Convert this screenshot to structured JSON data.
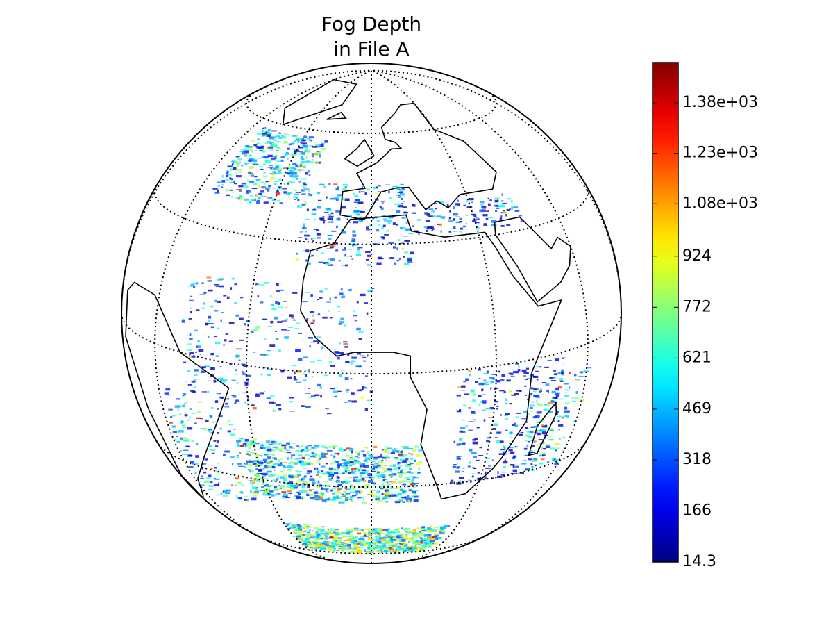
{
  "chart_data": {
    "type": "map",
    "title": [
      "Fog Depth",
      "in File A"
    ],
    "colorbar": {
      "colormap": "jet",
      "lim": [
        14.3,
        1500
      ],
      "ticks": [
        14.3,
        166,
        318,
        469,
        621,
        772,
        924,
        {
          "value": 1080,
          "label": "1.08e+03"
        },
        {
          "value": 1230,
          "label": "1.23e+03"
        },
        {
          "value": 1380,
          "label": "1.38e+03"
        }
      ]
    }
  }
}
